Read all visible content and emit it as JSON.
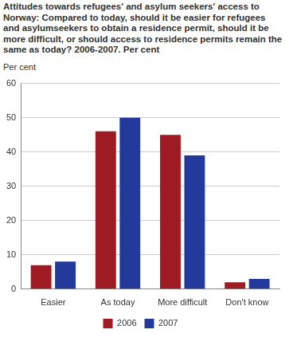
{
  "chart_data": {
    "type": "bar",
    "title": "Attitudes towards refugees' and asylum seekers' access to Norway: Compared to today, should it be easier for refugees and asylumseekers to obtain a residence permit, should it be more difficult, or should access to residence permits remain the same as today? 2006-2007. Per cent",
    "y_label": "Per cent",
    "categories": [
      "Easier",
      "As today",
      "More difficult",
      "Don't know"
    ],
    "series": [
      {
        "name": "2006",
        "color": "#9e1b23",
        "values": [
          7,
          46,
          45,
          2
        ]
      },
      {
        "name": "2007",
        "color": "#233a9c",
        "values": [
          8,
          50,
          39,
          3
        ]
      }
    ],
    "ylim": [
      0,
      60
    ],
    "yticks": [
      0,
      10,
      20,
      30,
      40,
      50,
      60
    ],
    "grid": true,
    "legend": "bottom"
  }
}
